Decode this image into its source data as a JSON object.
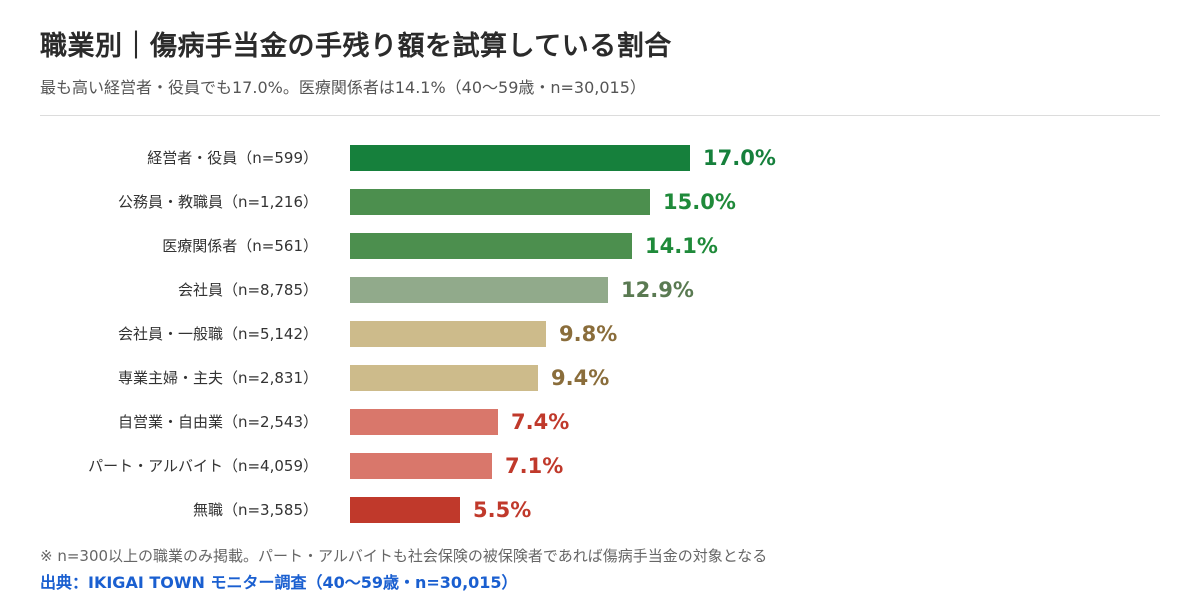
{
  "header": {
    "title": "職業別｜傷病手当金の手残り額を試算している割合",
    "subtitle": "最も高い経営者・役員でも17.0%。医療関係者は14.1%（40〜59歳・n=30,015）"
  },
  "chart_data": {
    "type": "bar",
    "orientation": "horizontal",
    "categories": [
      "経営者・役員（n=599）",
      "公務員・教職員（n=1,216）",
      "医療関係者（n=561）",
      "会社員（n=8,785）",
      "会社員・一般職（n=5,142）",
      "専業主婦・主夫（n=2,831）",
      "自営業・自由業（n=2,543）",
      "パート・アルバイト（n=4,059）",
      "無職（n=3,585）"
    ],
    "values": [
      17.0,
      15.0,
      14.1,
      12.9,
      9.8,
      9.4,
      7.4,
      7.1,
      5.5
    ],
    "value_labels": [
      "17.0%",
      "15.0%",
      "14.1%",
      "12.9%",
      "9.8%",
      "9.4%",
      "7.4%",
      "7.1%",
      "5.5%"
    ],
    "bar_colors": [
      "#16803c",
      "#4c8f4e",
      "#4c8f4e",
      "#91aa8b",
      "#cdbb8b",
      "#cdbb8b",
      "#d9776b",
      "#d9776b",
      "#c0392b"
    ],
    "label_colors": [
      "#16803c",
      "#1f8a3a",
      "#1f8a3a",
      "#5a7a52",
      "#8a6d3b",
      "#8a6d3b",
      "#c0392b",
      "#c0392b",
      "#c0392b"
    ],
    "xlim": [
      0,
      17
    ],
    "grid": false,
    "legend": "none"
  },
  "footer": {
    "note": "※ n=300以上の職業のみ掲載。パート・アルバイトも社会保険の被保険者であれば傷病手当金の対象となる",
    "source": "出典：IKIGAI TOWN モニター調査（40〜59歳・n=30,015）",
    "source_color": "#1a5fd0"
  }
}
